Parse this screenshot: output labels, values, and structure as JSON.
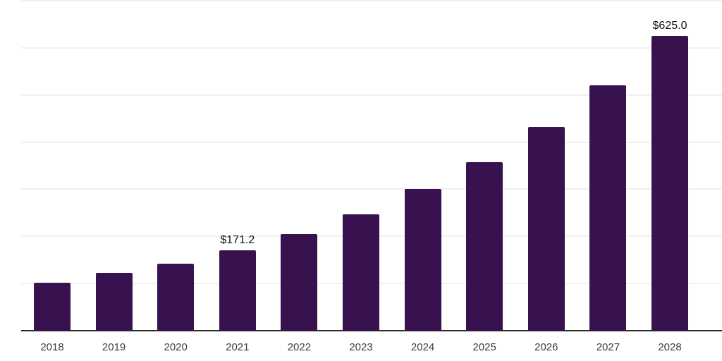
{
  "chart_data": {
    "type": "bar",
    "title": "",
    "xlabel": "",
    "ylabel": "",
    "categories": [
      "2018",
      "2019",
      "2020",
      "2021",
      "2022",
      "2023",
      "2024",
      "2025",
      "2026",
      "2027",
      "2028"
    ],
    "values": [
      101,
      122,
      142,
      171.2,
      205,
      247,
      300,
      358,
      432,
      521,
      625
    ],
    "value_labels": {
      "2021": "$171.2",
      "2028": "$625.0"
    },
    "ylim": [
      0,
      700
    ],
    "gridline_step": 100,
    "grid": true,
    "legend_position": "none",
    "y_tick_labels_visible": false,
    "colors": {
      "bar": "#38124E",
      "grid": "#F1F1F3",
      "axis": "#2D2D2D",
      "tick_label": "#3D3D3D",
      "value_label": "#111111",
      "background": "#FFFFFF"
    }
  }
}
